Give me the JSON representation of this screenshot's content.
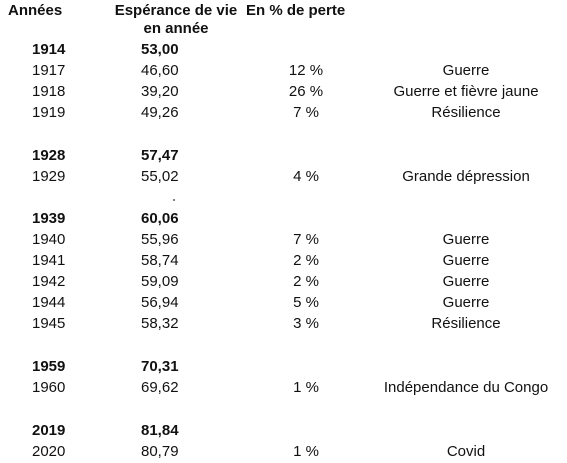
{
  "headers": {
    "year": "Années",
    "life_line1": "Espérance de vie",
    "life_line2": "en année",
    "loss": "En % de perte"
  },
  "rows": [
    {
      "year": "1914",
      "life": "53,00",
      "loss": "",
      "cause": "",
      "bold": true
    },
    {
      "year": "1917",
      "life": "46,60",
      "loss": "12 %",
      "cause": "Guerre",
      "bold": false
    },
    {
      "year": "1918",
      "life": "39,20",
      "loss": "26 %",
      "cause": "Guerre et fièvre jaune",
      "bold": false
    },
    {
      "year": "1919",
      "life": "49,26",
      "loss": "7 %",
      "cause": "Résilience",
      "bold": false
    },
    {
      "year": "1928",
      "life": "57,47",
      "loss": "",
      "cause": "",
      "bold": true
    },
    {
      "year": "1929",
      "life": "55,02",
      "loss": "4 %",
      "cause": "Grande dépression",
      "bold": false
    },
    {
      "year": "1939",
      "life": "60,06",
      "loss": "",
      "cause": "",
      "bold": true
    },
    {
      "year": "1940",
      "life": "55,96",
      "loss": "7 %",
      "cause": "Guerre",
      "bold": false
    },
    {
      "year": "1941",
      "life": "58,74",
      "loss": "2 %",
      "cause": "Guerre",
      "bold": false
    },
    {
      "year": "1942",
      "life": "59,09",
      "loss": "2 %",
      "cause": "Guerre",
      "bold": false
    },
    {
      "year": "1944",
      "life": "56,94",
      "loss": "5 %",
      "cause": "Guerre",
      "bold": false
    },
    {
      "year": "1945",
      "life": "58,32",
      "loss": "3 %",
      "cause": "Résilience",
      "bold": false
    },
    {
      "year": "1959",
      "life": "70,31",
      "loss": "",
      "cause": "",
      "bold": true
    },
    {
      "year": "1960",
      "life": "69,62",
      "loss": "1 %",
      "cause": "Indépendance du Congo",
      "bold": false
    },
    {
      "year": "2019",
      "life": "81,84",
      "loss": "",
      "cause": "",
      "bold": true
    },
    {
      "year": "2020",
      "life": "80,79",
      "loss": "1 %",
      "cause": "Covid",
      "bold": false
    }
  ]
}
